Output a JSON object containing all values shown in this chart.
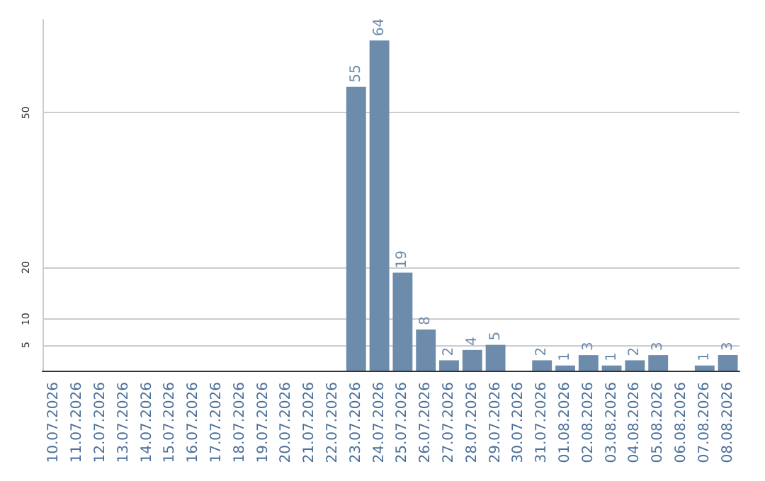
{
  "chart_data": {
    "type": "bar",
    "categories": [
      "10.07.2026",
      "11.07.2026",
      "12.07.2026",
      "13.07.2026",
      "14.07.2026",
      "15.07.2026",
      "16.07.2026",
      "17.07.2026",
      "18.07.2026",
      "19.07.2026",
      "20.07.2026",
      "21.07.2026",
      "22.07.2026",
      "23.07.2026",
      "24.07.2026",
      "25.07.2026",
      "26.07.2026",
      "27.07.2026",
      "28.07.2026",
      "29.07.2026",
      "30.07.2026",
      "31.07.2026",
      "01.08.2026",
      "02.08.2026",
      "03.08.2026",
      "04.08.2026",
      "05.08.2026",
      "06.08.2026",
      "07.08.2026",
      "08.08.2026"
    ],
    "values": [
      0,
      0,
      0,
      0,
      0,
      0,
      0,
      0,
      0,
      0,
      0,
      0,
      0,
      55,
      64,
      19,
      8,
      2,
      4,
      5,
      0,
      2,
      1,
      3,
      1,
      2,
      3,
      0,
      1,
      3
    ],
    "value_labels": [
      null,
      null,
      null,
      null,
      null,
      null,
      null,
      null,
      null,
      null,
      null,
      null,
      null,
      "55",
      "64",
      "19",
      "8",
      "2",
      "4",
      "5",
      null,
      "2",
      "1",
      "3",
      "1",
      "2",
      "3",
      null,
      "1",
      "3"
    ],
    "color": "#6d8cab",
    "ylim": [
      0,
      68
    ],
    "yticks": [
      5,
      10,
      20,
      50
    ],
    "grid": "y"
  }
}
